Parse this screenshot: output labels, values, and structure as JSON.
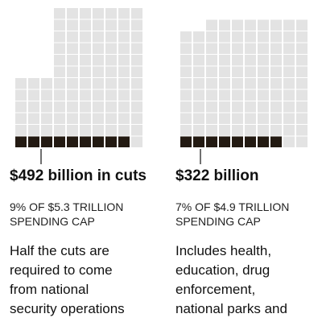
{
  "chart_data": [
    {
      "type": "waffle",
      "total_label": "$5.3 TRILLION SPENDING CAP",
      "headline": "$492 billion in cuts",
      "caption": "9% OF $5.3 TRILLION\nSPENDING CAP",
      "description": "Half the cuts are\nrequired to come\nfrom national\nsecurity operations",
      "percent": 9,
      "colors": {
        "filled": "#231a12",
        "empty": "#e3e3e3"
      }
    },
    {
      "type": "waffle",
      "total_label": "$4.9 TRILLION SPENDING CAP",
      "headline": "$322 billion",
      "caption": "7% OF $4.9 TRILLION\nSPENDING CAP",
      "description": "Includes health,\neducation, drug\nenforcement,\nnational parks and",
      "percent": 7,
      "colors": {
        "filled": "#231a12",
        "empty": "#e3e3e3"
      }
    }
  ]
}
